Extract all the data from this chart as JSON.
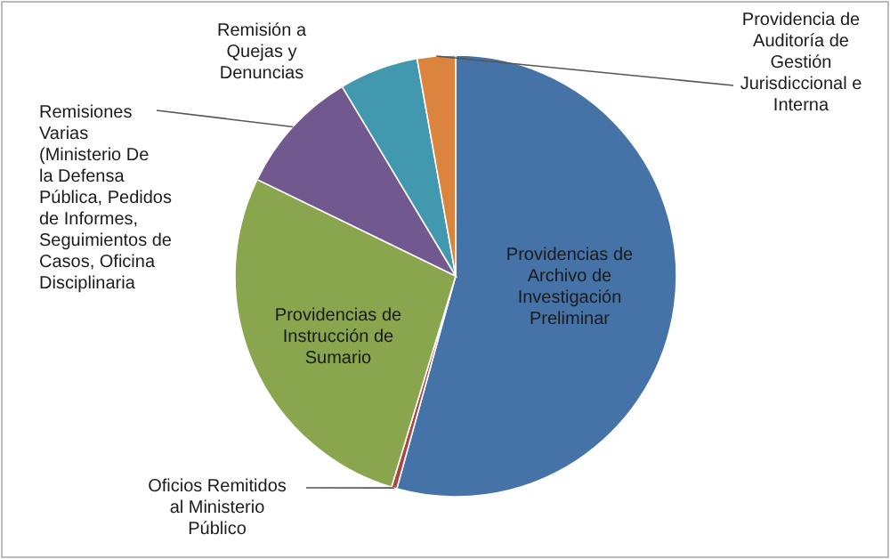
{
  "chart_data": {
    "type": "pie",
    "categories": [
      "Providencias de Archivo de Investigación Preliminar",
      "Oficios Remitidos al Ministerio Público",
      "Providencias de Instrucción de Sumario",
      "Remisiones Varias (Ministerio De la Defensa Pública, Pedidos de Informes, Seguimientos de Casos, Oficina Disciplinaria",
      "Remisión a Quejas y Denuncias",
      "Providencia de Auditoría de Gestión Jurisdiccional e Interna"
    ],
    "values": [
      54.3,
      0.4,
      27.5,
      9.2,
      5.8,
      2.8
    ],
    "colors": [
      "#4572a7",
      "#aa4643",
      "#89a54e",
      "#71588f",
      "#4198af",
      "#db843d"
    ]
  }
}
